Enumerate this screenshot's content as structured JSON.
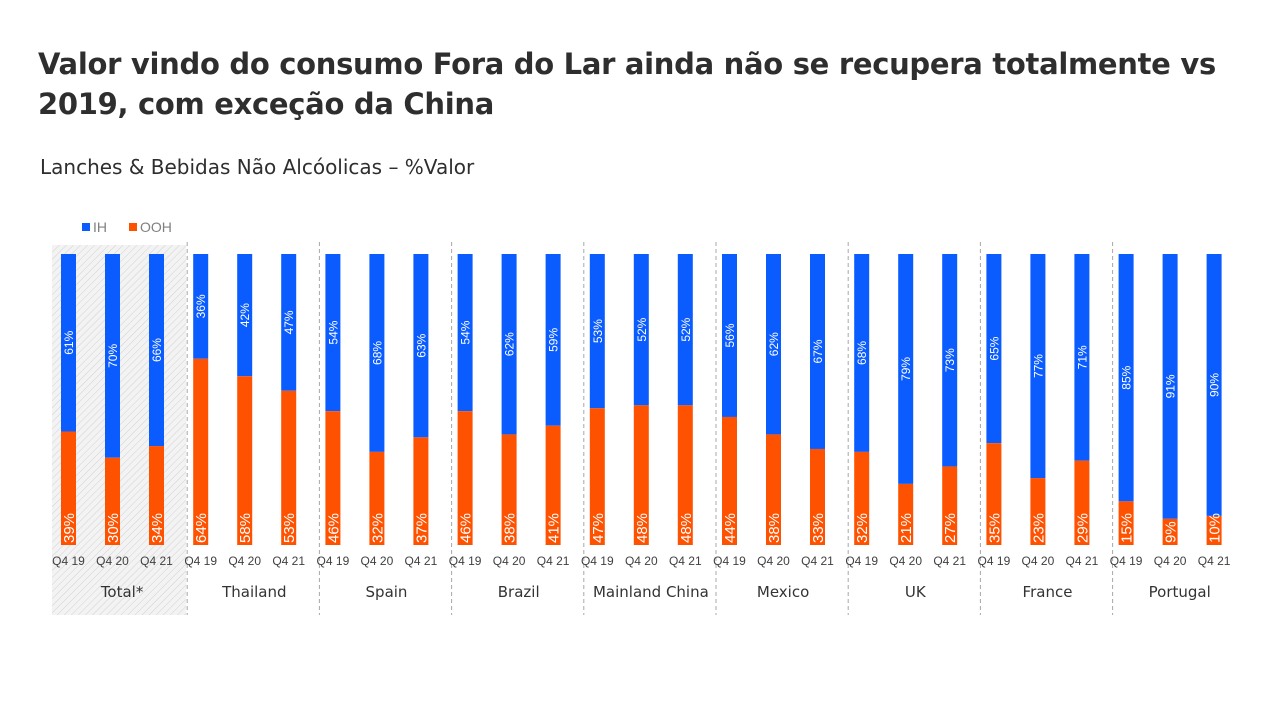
{
  "title": "Valor vindo do consumo Fora do Lar ainda não se recupera totalmente vs 2019, com exceção da China",
  "subtitle": "Lanches & Bebidas Não Alcóolicas – %Valor",
  "chart_data": {
    "type": "bar",
    "stacked": true,
    "ylim": [
      0,
      100
    ],
    "grid": false,
    "legend_position": "top-left",
    "colors": {
      "IH": "#0a5cff",
      "OOH": "#ff5200"
    },
    "groups": [
      {
        "name": "Total*",
        "highlighted": true,
        "categories": [
          "Q4 19",
          "Q4 20",
          "Q4 21"
        ],
        "IH": [
          61,
          70,
          66
        ],
        "OOH": [
          39,
          30,
          34
        ]
      },
      {
        "name": "Thailand",
        "categories": [
          "Q4 19",
          "Q4 20",
          "Q4 21"
        ],
        "IH": [
          36,
          42,
          47
        ],
        "OOH": [
          64,
          58,
          53
        ]
      },
      {
        "name": "Spain",
        "categories": [
          "Q4 19",
          "Q4 20",
          "Q4 21"
        ],
        "IH": [
          54,
          68,
          63
        ],
        "OOH": [
          46,
          32,
          37
        ]
      },
      {
        "name": "Brazil",
        "categories": [
          "Q4 19",
          "Q4 20",
          "Q4 21"
        ],
        "IH": [
          54,
          62,
          59
        ],
        "OOH": [
          46,
          38,
          41
        ]
      },
      {
        "name": "Mainland China",
        "categories": [
          "Q4 19",
          "Q4 20",
          "Q4 21"
        ],
        "IH": [
          53,
          52,
          52
        ],
        "OOH": [
          47,
          48,
          48
        ]
      },
      {
        "name": "Mexico",
        "categories": [
          "Q4 19",
          "Q4 20",
          "Q4 21"
        ],
        "IH": [
          56,
          62,
          67
        ],
        "OOH": [
          44,
          38,
          33
        ]
      },
      {
        "name": "UK",
        "categories": [
          "Q4 19",
          "Q4 20",
          "Q4 21"
        ],
        "IH": [
          68,
          79,
          73
        ],
        "OOH": [
          32,
          21,
          27
        ]
      },
      {
        "name": "France",
        "categories": [
          "Q4 19",
          "Q4 20",
          "Q4 21"
        ],
        "IH": [
          65,
          77,
          71
        ],
        "OOH": [
          35,
          23,
          29
        ]
      },
      {
        "name": "Portugal",
        "categories": [
          "Q4 19",
          "Q4 20",
          "Q4 21"
        ],
        "IH": [
          85,
          91,
          90
        ],
        "OOH": [
          15,
          9,
          10
        ]
      }
    ],
    "series": [
      {
        "name": "IH"
      },
      {
        "name": "OOH"
      }
    ]
  }
}
